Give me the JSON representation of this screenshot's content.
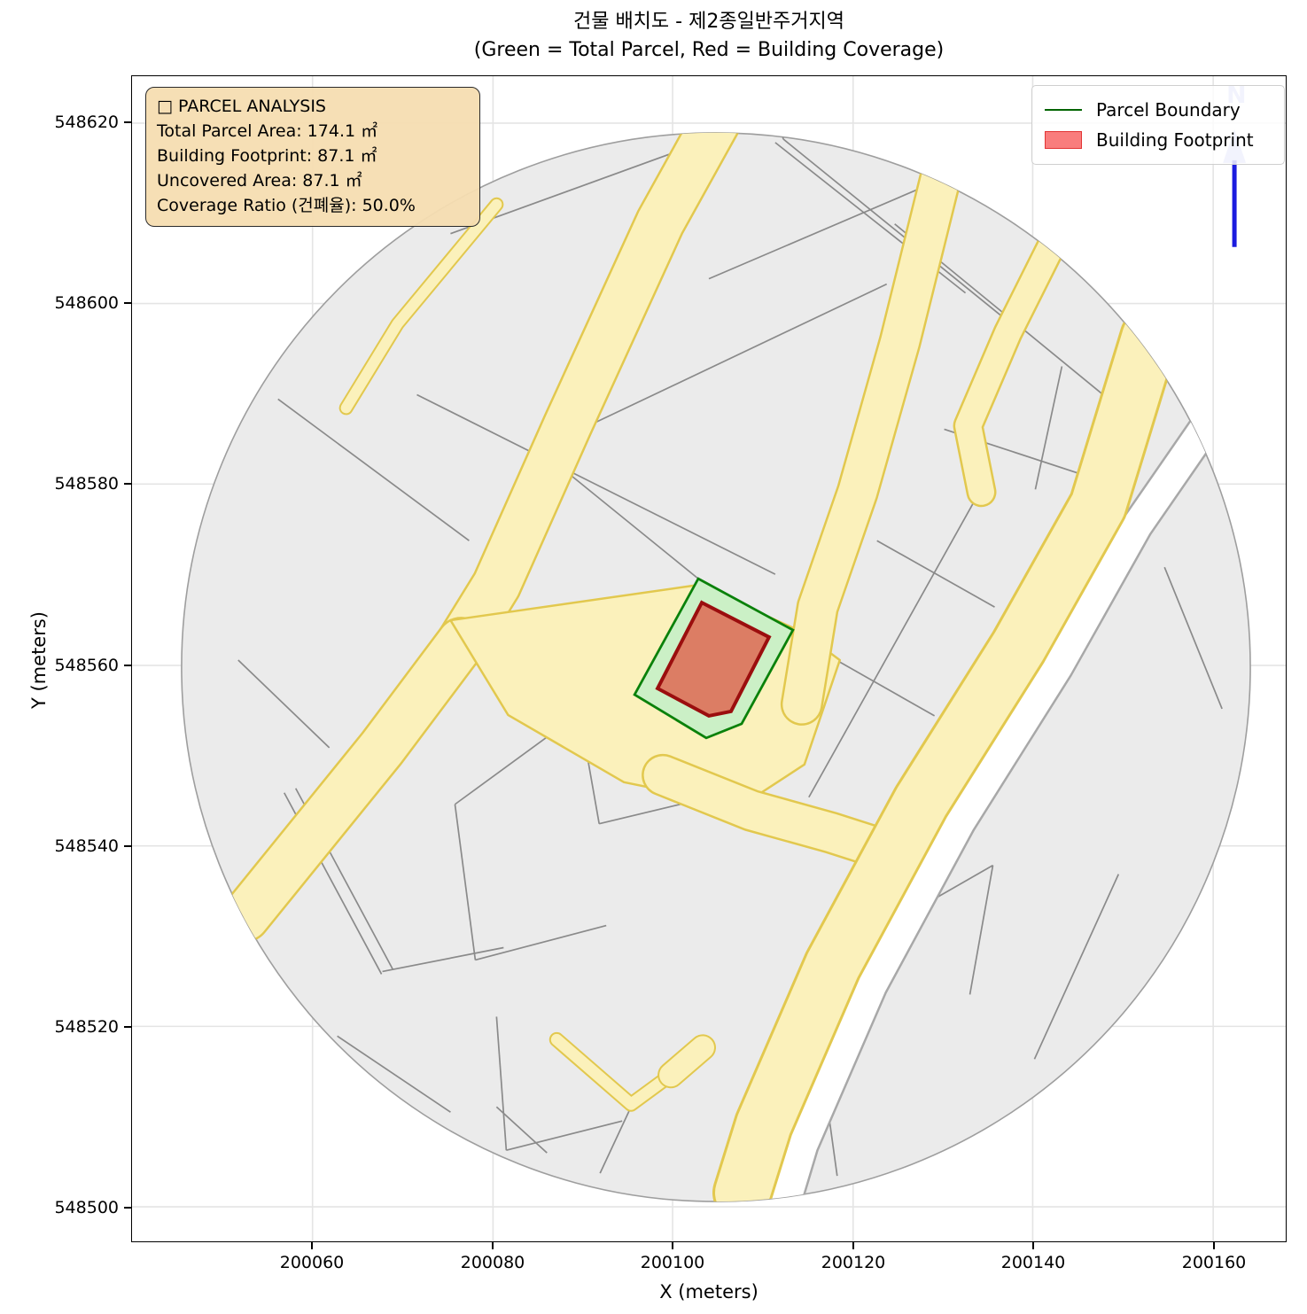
{
  "title": {
    "line1": "건물 배치도 - 제2종일반주거지역",
    "line2": "(Green = Total Parcel, Red = Building Coverage)"
  },
  "axes": {
    "xlabel": "X (meters)",
    "ylabel": "Y (meters)",
    "x_ticks": [
      "200060",
      "200080",
      "200100",
      "200120",
      "200140",
      "200160"
    ],
    "y_ticks": [
      "548620",
      "548600",
      "548580",
      "548560",
      "548540",
      "548520",
      "548500"
    ]
  },
  "legend": {
    "items": [
      {
        "label": "Parcel Boundary",
        "swatch": "green-line",
        "color": "#006400"
      },
      {
        "label": "Building Footprint",
        "swatch": "red-patch",
        "fill": "#f97d7d",
        "stroke": "#e23535"
      }
    ]
  },
  "info_box": {
    "title": "□ PARCEL ANALYSIS",
    "lines": [
      "Total Parcel Area:  174.1 ㎡",
      "Building Footprint:  87.1 ㎡",
      "Uncovered Area:  87.1 ㎡",
      "Coverage Ratio (건폐율):  50.0%"
    ]
  },
  "north_indicator": {
    "label": "N"
  },
  "map_colors": {
    "parcel_fill": "#ebebeb",
    "parcel_line": "#8a8a8a",
    "road_fill": "#fbf1bb",
    "road_edge": "#e2c84e",
    "target_parcel_fill": "#cbf0c6",
    "target_parcel_stroke": "#0a810a",
    "building_fill": "#dc7d64",
    "building_stroke": "#9b0e0e",
    "north_arrow": "#1b1bdf"
  },
  "chart_data": {
    "type": "map",
    "title": "건물 배치도 - 제2종일반주거지역",
    "subtitle": "(Green = Total Parcel, Red = Building Coverage)",
    "xlabel": "X (meters)",
    "ylabel": "Y (meters)",
    "xlim": [
      200040,
      200168
    ],
    "ylim": [
      548496,
      548625
    ],
    "x_ticks": [
      200060,
      200080,
      200100,
      200120,
      200140,
      200160
    ],
    "y_ticks": [
      548500,
      548520,
      548540,
      548560,
      548580,
      548600,
      548620
    ],
    "grid": true,
    "legend_position": "upper right",
    "parcel_analysis": {
      "total_parcel_area_m2": 174.1,
      "building_footprint_m2": 87.1,
      "uncovered_area_m2": 87.1,
      "coverage_ratio_pct": 50.0
    },
    "legend": [
      "Parcel Boundary",
      "Building Footprint"
    ]
  }
}
